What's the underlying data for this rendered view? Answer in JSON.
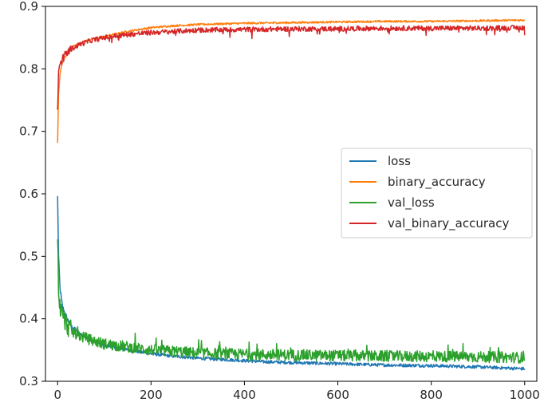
{
  "chart_data": {
    "type": "line",
    "title": "",
    "xlabel": "",
    "ylabel": "",
    "xlim": [
      -26,
      1026
    ],
    "ylim": [
      0.3,
      0.9
    ],
    "x_ticks": [
      0,
      200,
      400,
      600,
      800,
      1000
    ],
    "x_tick_labels": [
      "0",
      "200",
      "400",
      "600",
      "800",
      "1000"
    ],
    "y_ticks": [
      0.3,
      0.4,
      0.5,
      0.6,
      0.7,
      0.8,
      0.9
    ],
    "y_tick_labels": [
      "0.3",
      "0.4",
      "0.5",
      "0.6",
      "0.7",
      "0.8",
      "0.9"
    ],
    "grid": false,
    "legend_position": "center-right",
    "series": [
      {
        "name": "loss",
        "color": "#1f77b4",
        "x": [
          0,
          2,
          5,
          10,
          20,
          30,
          50,
          75,
          100,
          150,
          200,
          250,
          300,
          350,
          400,
          450,
          500,
          600,
          700,
          800,
          900,
          1000
        ],
        "y": [
          0.595,
          0.5,
          0.45,
          0.42,
          0.4,
          0.388,
          0.375,
          0.365,
          0.358,
          0.35,
          0.344,
          0.34,
          0.337,
          0.335,
          0.333,
          0.331,
          0.33,
          0.328,
          0.326,
          0.325,
          0.323,
          0.32
        ]
      },
      {
        "name": "binary_accuracy",
        "color": "#ff7f0e",
        "x": [
          0,
          2,
          5,
          10,
          20,
          30,
          50,
          75,
          100,
          150,
          200,
          250,
          300,
          400,
          500,
          600,
          700,
          800,
          900,
          1000
        ],
        "y": [
          0.68,
          0.76,
          0.79,
          0.81,
          0.825,
          0.835,
          0.842,
          0.848,
          0.852,
          0.86,
          0.866,
          0.869,
          0.871,
          0.873,
          0.874,
          0.875,
          0.876,
          0.876,
          0.877,
          0.878
        ]
      },
      {
        "name": "val_loss",
        "color": "#2ca02c",
        "x": [
          0,
          2,
          5,
          10,
          20,
          30,
          50,
          75,
          100,
          150,
          200,
          250,
          300,
          400,
          500,
          600,
          700,
          800,
          900,
          1000
        ],
        "y": [
          0.535,
          0.45,
          0.42,
          0.405,
          0.39,
          0.38,
          0.372,
          0.365,
          0.36,
          0.355,
          0.35,
          0.348,
          0.345,
          0.343,
          0.342,
          0.341,
          0.34,
          0.34,
          0.339,
          0.338
        ]
      },
      {
        "name": "val_binary_accuracy",
        "color": "#d62728",
        "x": [
          0,
          2,
          5,
          10,
          20,
          30,
          50,
          75,
          100,
          150,
          200,
          250,
          300,
          400,
          500,
          600,
          700,
          800,
          900,
          1000
        ],
        "y": [
          0.735,
          0.79,
          0.805,
          0.815,
          0.825,
          0.832,
          0.84,
          0.846,
          0.85,
          0.855,
          0.858,
          0.86,
          0.862,
          0.863,
          0.864,
          0.864,
          0.865,
          0.865,
          0.865,
          0.866
        ]
      }
    ]
  }
}
